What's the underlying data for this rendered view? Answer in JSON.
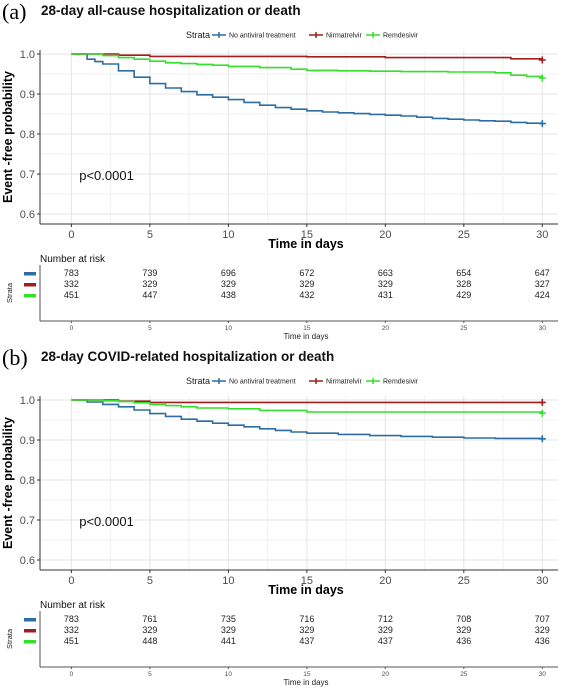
{
  "chart_data": [
    {
      "type": "line",
      "panel_label": "(a)",
      "title": "28-day all-cause hospitalization or death",
      "xlabel": "Time in days",
      "ylabel": "Event -free probability",
      "xlim": [
        -2,
        31
      ],
      "ylim": [
        0.575,
        1.01
      ],
      "xticks": [
        0,
        5,
        10,
        15,
        20,
        25,
        30
      ],
      "yticks": [
        0.6,
        0.7,
        0.8,
        0.9,
        1.0
      ],
      "ytick_labels": [
        "0.6",
        "0.7",
        "0.8",
        "0.9",
        "1.0"
      ],
      "grid": true,
      "legend_title": "Strata",
      "legend_position": "top",
      "annotation": "p<0.0001",
      "series": [
        {
          "name": "No antiviral treatment",
          "color": "#2e6da4",
          "x": [
            0,
            1,
            1.5,
            2,
            3,
            4,
            5,
            6,
            7,
            8,
            9,
            10,
            11,
            12,
            13,
            14,
            15,
            16,
            17,
            18,
            19,
            20,
            21,
            22,
            23,
            24,
            25,
            26,
            27,
            28,
            29,
            30
          ],
          "y": [
            1.0,
            0.987,
            0.981,
            0.975,
            0.958,
            0.942,
            0.926,
            0.915,
            0.906,
            0.898,
            0.892,
            0.886,
            0.879,
            0.872,
            0.866,
            0.862,
            0.858,
            0.855,
            0.853,
            0.851,
            0.849,
            0.847,
            0.845,
            0.842,
            0.839,
            0.837,
            0.835,
            0.833,
            0.832,
            0.829,
            0.827,
            0.826
          ]
        },
        {
          "name": "Nirmatrelvir",
          "color": "#a31d1d",
          "x": [
            0,
            3,
            5,
            10,
            15,
            20,
            25,
            28,
            30
          ],
          "y": [
            1.0,
            0.997,
            0.994,
            0.994,
            0.993,
            0.991,
            0.991,
            0.988,
            0.985
          ]
        },
        {
          "name": "Remdesivir",
          "color": "#33e02b",
          "x": [
            0,
            2,
            3,
            4,
            5,
            6,
            7,
            8,
            9,
            10,
            12,
            14,
            15,
            17,
            19,
            21,
            24,
            27,
            28,
            29,
            30
          ],
          "y": [
            1.0,
            0.996,
            0.991,
            0.987,
            0.982,
            0.978,
            0.976,
            0.974,
            0.972,
            0.969,
            0.966,
            0.962,
            0.959,
            0.958,
            0.957,
            0.956,
            0.955,
            0.953,
            0.947,
            0.944,
            0.94
          ]
        }
      ],
      "risk_table": {
        "title": "Number at risk",
        "y_label": "Strata",
        "xlabel": "Time in days",
        "times": [
          "0",
          "5",
          "10",
          "15",
          "20",
          "25",
          "30"
        ],
        "rows": [
          {
            "color": "#2e6da4",
            "values": [
              "783",
              "739",
              "696",
              "672",
              "663",
              "654",
              "647"
            ]
          },
          {
            "color": "#a31d1d",
            "values": [
              "332",
              "329",
              "329",
              "329",
              "329",
              "328",
              "327"
            ]
          },
          {
            "color": "#33e02b",
            "values": [
              "451",
              "447",
              "438",
              "432",
              "431",
              "429",
              "424"
            ]
          }
        ]
      }
    },
    {
      "type": "line",
      "panel_label": "(b)",
      "title": "28-day COVID-related hospitalization or death",
      "xlabel": "Time in days",
      "ylabel": "Event -free probability",
      "xlim": [
        -2,
        31
      ],
      "ylim": [
        0.575,
        1.01
      ],
      "xticks": [
        0,
        5,
        10,
        15,
        20,
        25,
        30
      ],
      "yticks": [
        0.6,
        0.7,
        0.8,
        0.9,
        1.0
      ],
      "ytick_labels": [
        "0.6",
        "0.7",
        "0.8",
        "0.9",
        "1.0"
      ],
      "grid": true,
      "legend_title": "Strata",
      "legend_position": "top",
      "annotation": "p<0.0001",
      "series": [
        {
          "name": "No antiviral treatment",
          "color": "#2e6da4",
          "x": [
            0,
            1,
            2,
            3,
            4,
            5,
            6,
            7,
            8,
            9,
            10,
            11,
            12,
            13,
            14,
            15,
            17,
            19,
            21,
            23,
            25,
            27,
            30
          ],
          "y": [
            1.0,
            0.995,
            0.989,
            0.983,
            0.975,
            0.966,
            0.959,
            0.952,
            0.947,
            0.942,
            0.937,
            0.933,
            0.928,
            0.924,
            0.92,
            0.917,
            0.914,
            0.911,
            0.909,
            0.907,
            0.905,
            0.904,
            0.903
          ]
        },
        {
          "name": "Nirmatrelvir",
          "color": "#a31d1d",
          "x": [
            0,
            3,
            5,
            30
          ],
          "y": [
            1.0,
            0.997,
            0.994,
            0.994
          ]
        },
        {
          "name": "Remdesivir",
          "color": "#33e02b",
          "x": [
            0,
            2,
            3,
            4,
            5,
            6,
            7,
            8,
            10,
            12,
            15,
            30
          ],
          "y": [
            1.0,
            0.998,
            0.996,
            0.993,
            0.989,
            0.986,
            0.983,
            0.98,
            0.978,
            0.974,
            0.97,
            0.967
          ]
        }
      ],
      "risk_table": {
        "title": "Number at risk",
        "y_label": "Strata",
        "xlabel": "Time in days",
        "times": [
          "0",
          "5",
          "10",
          "15",
          "20",
          "25",
          "30"
        ],
        "rows": [
          {
            "color": "#2e6da4",
            "values": [
              "783",
              "761",
              "735",
              "716",
              "712",
              "708",
              "707"
            ]
          },
          {
            "color": "#a31d1d",
            "values": [
              "332",
              "329",
              "329",
              "329",
              "329",
              "329",
              "329"
            ]
          },
          {
            "color": "#33e02b",
            "values": [
              "451",
              "448",
              "441",
              "437",
              "437",
              "436",
              "436"
            ]
          }
        ]
      }
    }
  ]
}
